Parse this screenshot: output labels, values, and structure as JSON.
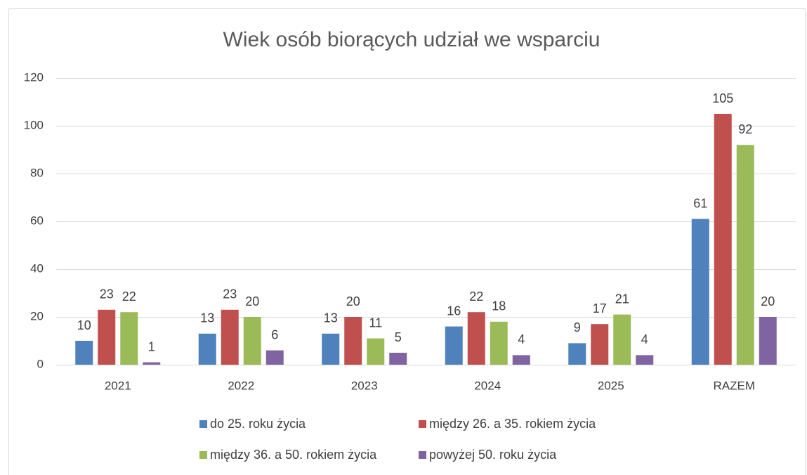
{
  "chart_data": {
    "type": "bar",
    "title": "Wiek osób biorących udział we wsparciu",
    "categories": [
      "2021",
      "2022",
      "2023",
      "2024",
      "2025",
      "RAZEM"
    ],
    "series": [
      {
        "name": "do 25. roku życia",
        "color": "#4f81bd",
        "values": [
          10,
          13,
          13,
          16,
          9,
          61
        ]
      },
      {
        "name": "między 26. a 35. rokiem życia",
        "color": "#c0504d",
        "values": [
          23,
          23,
          20,
          22,
          17,
          105
        ]
      },
      {
        "name": "między 36. a 50. rokiem życia",
        "color": "#9bbb59",
        "values": [
          22,
          20,
          11,
          18,
          21,
          92
        ]
      },
      {
        "name": "powyżej 50. roku życia",
        "color": "#8064a2",
        "values": [
          1,
          6,
          5,
          4,
          4,
          20
        ]
      }
    ],
    "ylim": [
      0,
      120
    ],
    "yticks": [
      0,
      20,
      40,
      60,
      80,
      100,
      120
    ],
    "grid": true,
    "legend": "bottom"
  }
}
